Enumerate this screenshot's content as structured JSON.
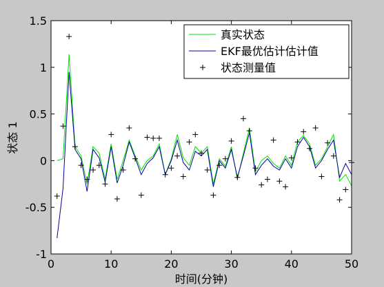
{
  "chart_data": {
    "type": "line",
    "xlabel": "时间(分钟)",
    "ylabel": "状态 1",
    "xlim": [
      0,
      50
    ],
    "ylim": [
      -1,
      1.5
    ],
    "xticks": [
      0,
      10,
      20,
      30,
      40,
      50
    ],
    "yticks": [
      -1,
      -0.5,
      0,
      0.5,
      1,
      1.5
    ],
    "xtick_labels": [
      "0",
      "10",
      "20",
      "30",
      "40",
      "50"
    ],
    "ytick_labels": [
      "-1",
      "-0.5",
      "0",
      "0.5",
      "1",
      "1.5"
    ],
    "grid": false,
    "legend_position": "top-right",
    "x": [
      1,
      2,
      3,
      4,
      5,
      6,
      7,
      8,
      9,
      10,
      11,
      12,
      13,
      14,
      15,
      16,
      17,
      18,
      19,
      20,
      21,
      22,
      23,
      24,
      25,
      26,
      27,
      28,
      29,
      30,
      31,
      32,
      33,
      34,
      35,
      36,
      37,
      38,
      39,
      40,
      41,
      42,
      43,
      44,
      45,
      46,
      47,
      48,
      49,
      50
    ],
    "series": [
      {
        "name": "真实状态",
        "style": "line",
        "color": "#00e000",
        "values": [
          0.0,
          0.02,
          1.14,
          0.15,
          0.05,
          -0.25,
          0.15,
          0.08,
          -0.2,
          0.18,
          -0.2,
          0.0,
          0.22,
          0.05,
          -0.1,
          0.0,
          0.05,
          0.18,
          -0.15,
          0.02,
          0.28,
          0.03,
          -0.05,
          0.15,
          0.08,
          0.15,
          -0.25,
          0.02,
          -0.06,
          0.15,
          -0.2,
          0.08,
          0.35,
          -0.12,
          0.0,
          0.05,
          -0.03,
          -0.08,
          0.05,
          -0.05,
          0.2,
          0.27,
          0.18,
          -0.05,
          0.02,
          0.15,
          0.28,
          -0.22,
          -0.15,
          -0.27
        ]
      },
      {
        "name": "EKF最优估计估计值",
        "style": "line",
        "color": "#0000a0",
        "values": [
          -0.83,
          -0.3,
          0.95,
          0.12,
          0.02,
          -0.33,
          0.12,
          0.03,
          -0.23,
          0.15,
          -0.24,
          -0.05,
          0.2,
          0.03,
          -0.15,
          -0.03,
          0.03,
          0.15,
          -0.15,
          0.0,
          0.22,
          -0.02,
          -0.1,
          0.1,
          0.05,
          0.12,
          -0.28,
          0.0,
          -0.08,
          0.12,
          -0.18,
          0.05,
          0.3,
          -0.15,
          -0.05,
          0.02,
          -0.06,
          -0.1,
          0.02,
          -0.08,
          0.15,
          0.25,
          0.15,
          -0.08,
          0.0,
          0.12,
          0.22,
          -0.18,
          -0.03,
          -0.15
        ]
      },
      {
        "name": "状态测量值",
        "style": "markers",
        "marker": "+",
        "color": "#000000",
        "values": [
          -0.38,
          0.37,
          1.33,
          0.15,
          -0.05,
          -0.2,
          -0.1,
          -0.05,
          -0.25,
          0.28,
          -0.41,
          -0.1,
          0.35,
          0.02,
          -0.37,
          0.25,
          0.24,
          0.24,
          -0.15,
          -0.08,
          0.05,
          -0.17,
          0.2,
          0.28,
          0.08,
          -0.1,
          -0.37,
          -0.05,
          0.02,
          0.21,
          -0.18,
          0.45,
          0.32,
          -0.08,
          -0.26,
          -0.2,
          0.22,
          -0.22,
          -0.28,
          0.03,
          0.2,
          0.31,
          0.13,
          0.35,
          -0.17,
          0.19,
          0.05,
          -0.42,
          -0.31,
          -0.02
        ]
      }
    ]
  }
}
